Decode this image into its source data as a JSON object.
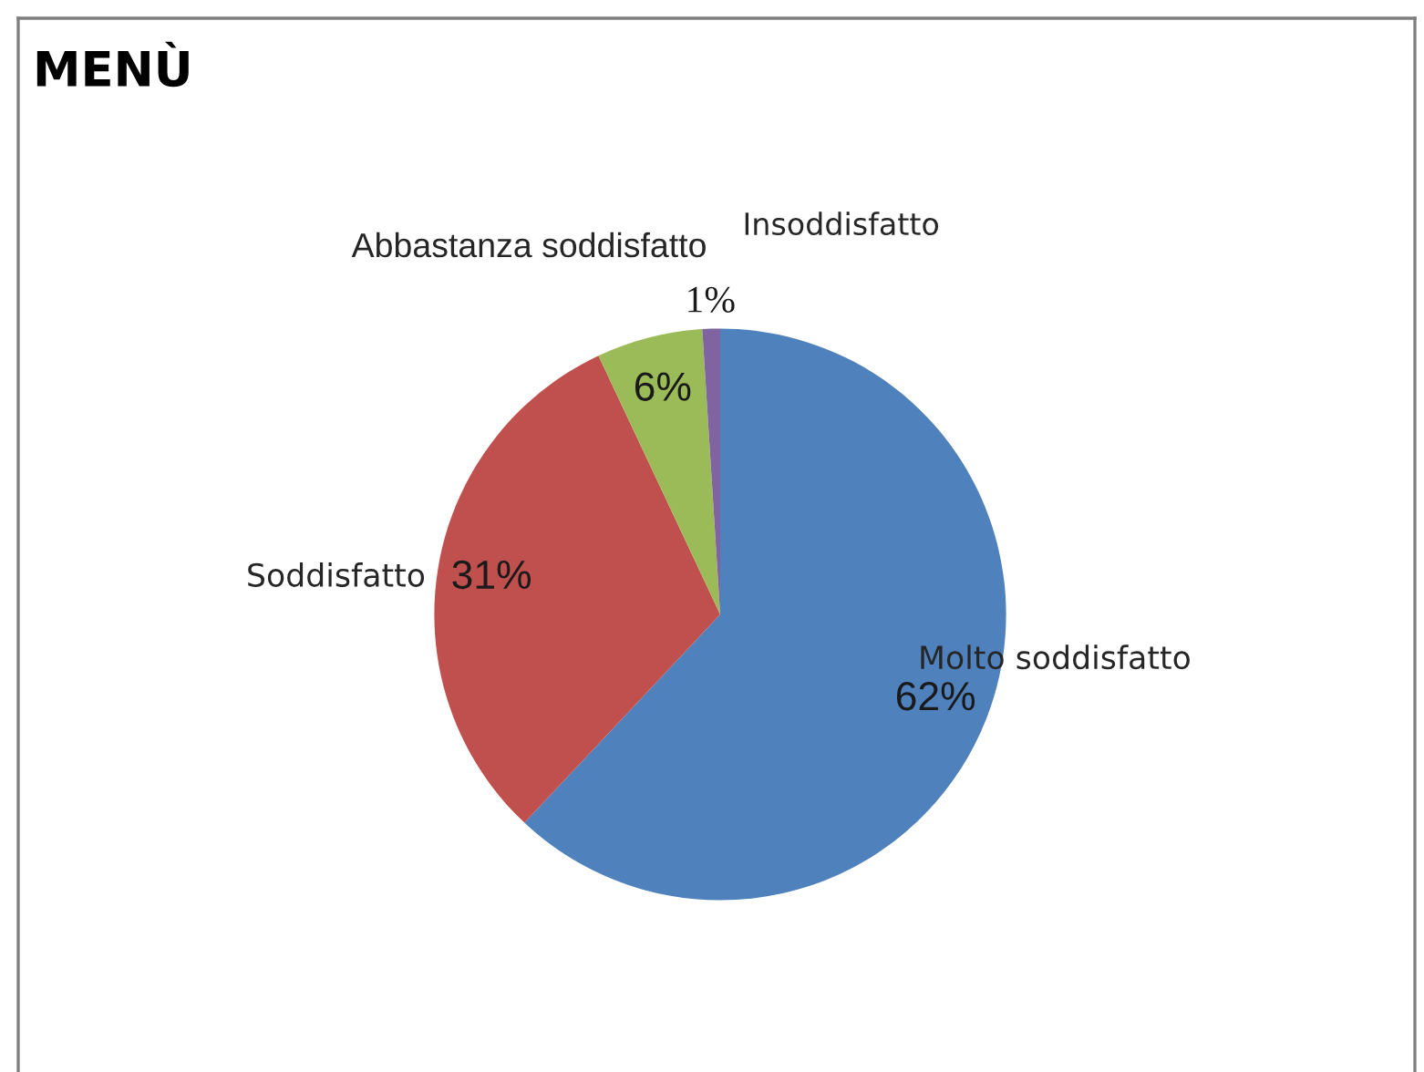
{
  "chart_data": {
    "type": "pie",
    "title": "MENÙ",
    "categories": [
      "Molto soddisfatto",
      "Soddisfatto",
      "Abbastanza soddisfatto",
      "Insoddisfatto"
    ],
    "values": [
      62,
      31,
      6,
      1
    ],
    "colors": [
      "#4f81bd",
      "#c0504d",
      "#9bbb59",
      "#8064a2"
    ],
    "value_labels": [
      "62%",
      "31%",
      "6%",
      "1%"
    ]
  }
}
